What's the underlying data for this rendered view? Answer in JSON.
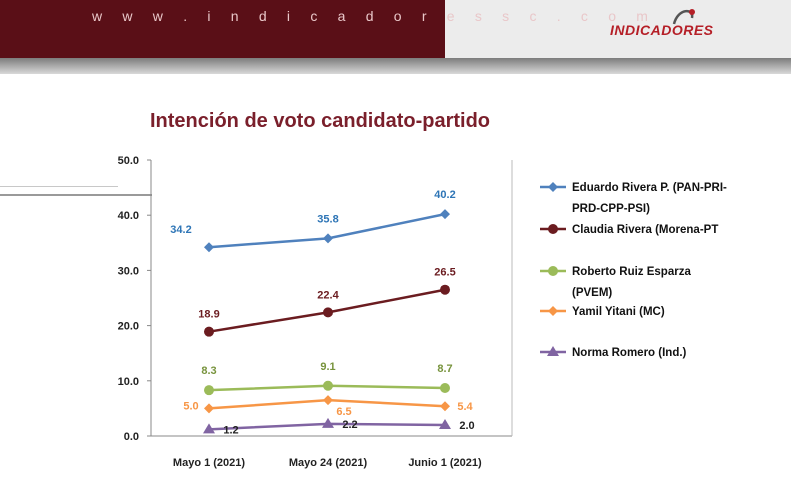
{
  "header": {
    "url_text": "w w w . i n d i c a d o r e s s c . c o m",
    "logo_text": "INDICADORES"
  },
  "colors": {
    "header_red": "#5a0f17",
    "title": "#7a1f2b",
    "axis": "#888888"
  },
  "chart_data": {
    "type": "line",
    "title": "Intención de voto candidato-partido",
    "categories": [
      "Mayo 1 (2021)",
      "Mayo 24 (2021)",
      "Junio 1 (2021)"
    ],
    "ylim": [
      0,
      50
    ],
    "yticks": [
      "0.0",
      "10.0",
      "20.0",
      "30.0",
      "40.0",
      "50.0"
    ],
    "grid": false,
    "legend_position": "right",
    "series": [
      {
        "name": "Eduardo Rivera P. (PAN-PRI-PRD-CPP-PSI)",
        "legend_lines": [
          "Eduardo Rivera P. (PAN-PRI-",
          "PRD-CPP-PSI)"
        ],
        "color": "#4f81bd",
        "marker": "diamond",
        "values": [
          34.2,
          35.8,
          40.2
        ],
        "labels": [
          "34.2",
          "35.8",
          "40.2"
        ]
      },
      {
        "name": "Claudia Rivera (Morena-PT",
        "legend_lines": [
          "Claudia Rivera (Morena-PT"
        ],
        "color": "#6b1c20",
        "marker": "circle",
        "values": [
          18.9,
          22.4,
          26.5
        ],
        "labels": [
          "18.9",
          "22.4",
          "26.5"
        ]
      },
      {
        "name": "Roberto Ruiz Esparza (PVEM)",
        "legend_lines": [
          "Roberto Ruiz Esparza",
          "(PVEM)"
        ],
        "color": "#9bbb59",
        "marker": "circle",
        "values": [
          8.3,
          9.1,
          8.7
        ],
        "labels": [
          "8.3",
          "9.1",
          "8.7"
        ]
      },
      {
        "name": "Yamil Yitani (MC)",
        "legend_lines": [
          "Yamil Yitani (MC)"
        ],
        "color": "#f79646",
        "marker": "diamond",
        "values": [
          5.0,
          6.5,
          5.4
        ],
        "labels": [
          "5.0",
          "6.5",
          "5.4"
        ]
      },
      {
        "name": "Norma Romero (Ind.)",
        "legend_lines": [
          "Norma Romero (Ind.)"
        ],
        "color": "#8064a2",
        "marker": "triangle",
        "values": [
          1.2,
          2.2,
          2.0
        ],
        "labels": [
          "1.2",
          "2.2",
          "2.0"
        ]
      }
    ]
  }
}
